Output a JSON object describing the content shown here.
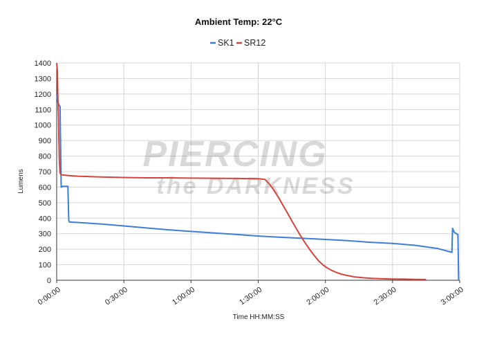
{
  "chart_data": {
    "type": "line",
    "title": "Ambient Temp: 22°C",
    "xlabel": "Time HH:MM:SS",
    "ylabel": "Lumens",
    "xlim": [
      0,
      180
    ],
    "ylim": [
      0,
      1400
    ],
    "yticks": [
      0,
      100,
      200,
      300,
      400,
      500,
      600,
      700,
      800,
      900,
      1000,
      1100,
      1200,
      1300,
      1400
    ],
    "xticks": [
      0,
      30,
      60,
      90,
      120,
      150,
      180
    ],
    "xtick_labels": [
      "0:00:00",
      "0:30:00",
      "1:00:00",
      "1:30:00",
      "2:00:00",
      "2:30:00",
      "3:00:00"
    ],
    "x_unit": "minutes",
    "grid": true,
    "legend_position": "top-center",
    "watermark": "PIERCING the DARKNESS",
    "series": [
      {
        "name": "SK1",
        "color": "#3b7dd8",
        "x": [
          0,
          0.5,
          1.0,
          1.5,
          2.0,
          2.3,
          2.5,
          3.0,
          5.0,
          5.4,
          5.7,
          6.0,
          10,
          20,
          30,
          40,
          50,
          60,
          70,
          80,
          90,
          100,
          110,
          120,
          130,
          140,
          150,
          160,
          170,
          176.5,
          176.8,
          177.5,
          178.5,
          179.2,
          179.5
        ],
        "y": [
          1200,
          1150,
          1130,
          1120,
          600,
          600,
          605,
          605,
          605,
          385,
          375,
          375,
          372,
          362,
          350,
          337,
          325,
          315,
          305,
          295,
          285,
          277,
          270,
          263,
          255,
          245,
          237,
          225,
          205,
          180,
          335,
          310,
          300,
          295,
          0
        ]
      },
      {
        "name": "SR12",
        "color": "#d9423a",
        "x": [
          0,
          0.3,
          0.5,
          0.8,
          1.0,
          1.2,
          1.5,
          2,
          5,
          10,
          20,
          30,
          40,
          50,
          60,
          70,
          80,
          90,
          93,
          95,
          97,
          99,
          101,
          103,
          105,
          107,
          109,
          111,
          113,
          115,
          117,
          119,
          121,
          123,
          125,
          127,
          129,
          131,
          133,
          135,
          137,
          139,
          141,
          143,
          145,
          147,
          150,
          155,
          160,
          165
        ],
        "y": [
          1400,
          1350,
          1200,
          1050,
          900,
          760,
          690,
          680,
          675,
          670,
          665,
          662,
          660,
          660,
          658,
          657,
          656,
          654,
          650,
          620,
          580,
          535,
          485,
          435,
          383,
          333,
          285,
          240,
          198,
          160,
          125,
          98,
          78,
          62,
          50,
          40,
          33,
          27,
          22,
          19,
          16,
          14,
          12,
          11,
          10,
          9,
          8,
          7,
          6,
          5
        ]
      }
    ]
  }
}
